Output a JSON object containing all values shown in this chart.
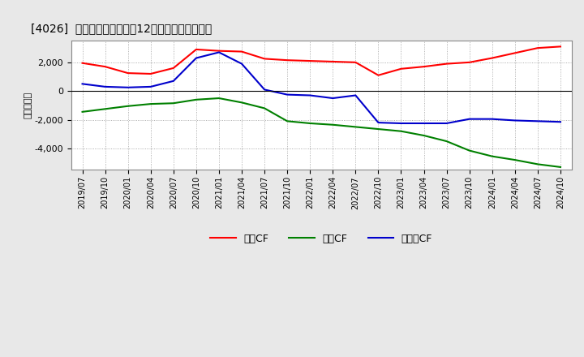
{
  "title": "[4026]  キャッシュフローの12か月移動合計の推移",
  "ylabel": "（百万円）",
  "x_labels": [
    "2019/07",
    "2019/10",
    "2020/01",
    "2020/04",
    "2020/07",
    "2020/10",
    "2021/01",
    "2021/04",
    "2021/07",
    "2021/10",
    "2022/01",
    "2022/04",
    "2022/07",
    "2022/10",
    "2023/01",
    "2023/04",
    "2023/07",
    "2023/10",
    "2024/01",
    "2024/04",
    "2024/07",
    "2024/10"
  ],
  "operating_cf": [
    1950,
    1700,
    1250,
    1200,
    1600,
    2900,
    2800,
    2750,
    2250,
    2150,
    2100,
    2050,
    2000,
    1100,
    1550,
    1700,
    1900,
    2000,
    2300,
    2650,
    3000,
    3100
  ],
  "investing_cf": [
    -1450,
    -1250,
    -1050,
    -900,
    -850,
    -600,
    -500,
    -800,
    -1200,
    -2100,
    -2250,
    -2350,
    -2500,
    -2650,
    -2800,
    -3100,
    -3500,
    -4150,
    -4550,
    -4800,
    -5100,
    -5300
  ],
  "free_cf": [
    500,
    300,
    250,
    300,
    700,
    2300,
    2700,
    1900,
    100,
    -250,
    -300,
    -500,
    -300,
    -2200,
    -2250,
    -2250,
    -2250,
    -1950,
    -1950,
    -2050,
    -2100,
    -2150
  ],
  "operating_color": "#ff0000",
  "investing_color": "#008000",
  "free_color": "#0000cc",
  "ylim": [
    -5500,
    3500
  ],
  "yticks": [
    -4000,
    -2000,
    0,
    2000
  ],
  "background_color": "#e8e8e8",
  "plot_bg_color": "#ffffff",
  "grid_color": "#999999",
  "legend_labels": [
    "営業CF",
    "投資CF",
    "フリーCF"
  ]
}
